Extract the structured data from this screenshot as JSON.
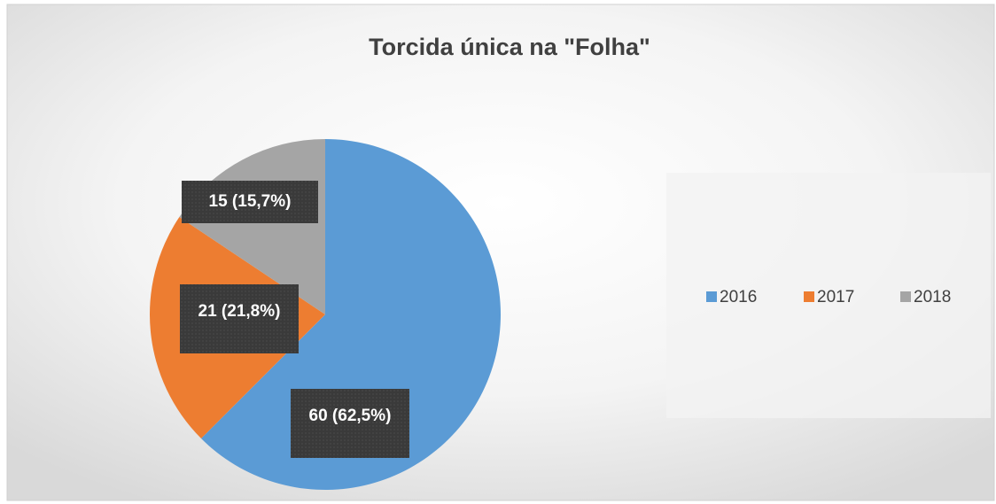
{
  "chart_data": {
    "type": "pie",
    "title": "Torcida única na \"Folha\"",
    "categories": [
      "2016",
      "2017",
      "2018"
    ],
    "values": [
      60,
      21,
      15
    ],
    "value_labels": [
      "60 (62,5%)",
      "21 (21,8%)",
      "15 (15,7%)"
    ],
    "colors": [
      "#5b9bd5",
      "#ed7d31",
      "#a5a5a5"
    ],
    "legend": "right"
  }
}
